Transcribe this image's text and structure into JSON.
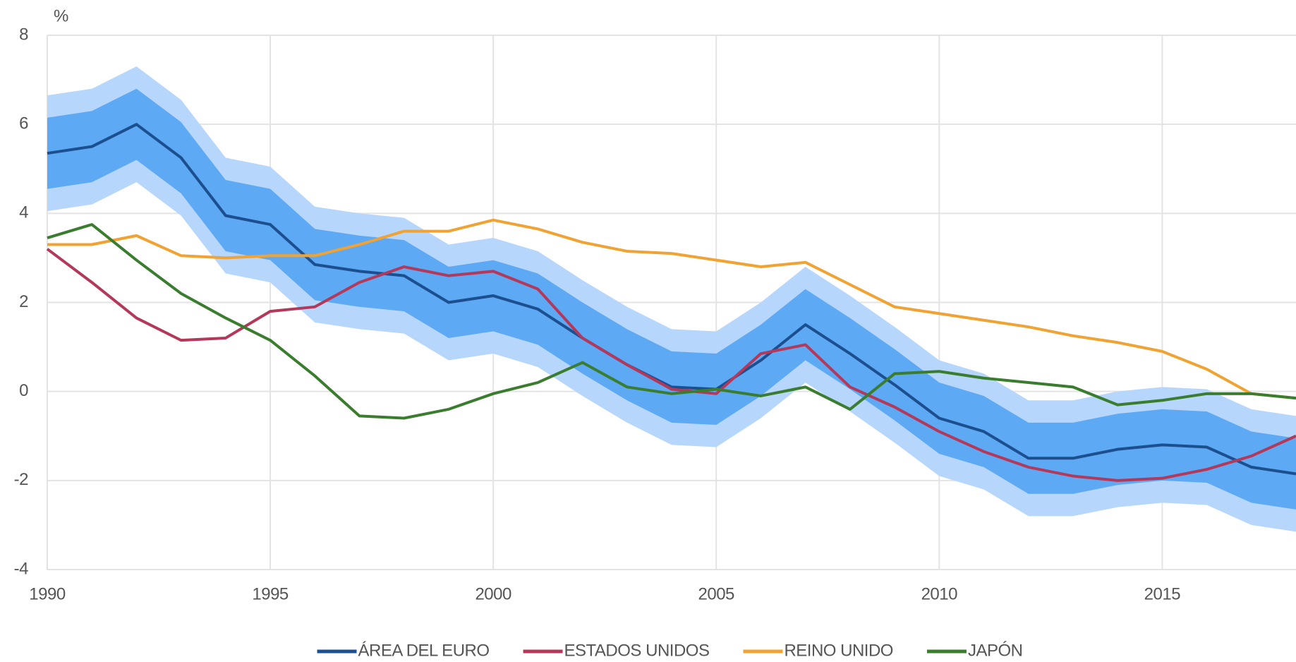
{
  "chart_data": {
    "type": "line",
    "ylabel": "%",
    "x": [
      1990,
      1991,
      1992,
      1993,
      1994,
      1995,
      1996,
      1997,
      1998,
      1999,
      2000,
      2001,
      2002,
      2003,
      2004,
      2005,
      2006,
      2007,
      2008,
      2009,
      2010,
      2011,
      2012,
      2013,
      2014,
      2015,
      2016,
      2017,
      2018
    ],
    "xlim": [
      1990,
      2018
    ],
    "xticks": [
      1990,
      1995,
      2000,
      2005,
      2010,
      2015
    ],
    "ylim": [
      -4,
      8
    ],
    "yticks": [
      8,
      6,
      4,
      2,
      0,
      -2,
      -4
    ],
    "grid": true,
    "legend": "bottom",
    "bands": [
      {
        "color": "#b7d6fb",
        "lower": [
          4.05,
          4.2,
          4.7,
          3.95,
          2.65,
          2.45,
          1.55,
          1.4,
          1.3,
          0.7,
          0.85,
          0.55,
          -0.1,
          -0.7,
          -1.2,
          -1.25,
          -0.6,
          0.2,
          -0.45,
          -1.15,
          -1.9,
          -2.2,
          -2.8,
          -2.8,
          -2.6,
          -2.5,
          -2.55,
          -3.0,
          -3.15
        ],
        "upper": [
          6.65,
          6.8,
          7.3,
          6.55,
          5.25,
          5.05,
          4.15,
          4.0,
          3.9,
          3.3,
          3.45,
          3.15,
          2.5,
          1.9,
          1.4,
          1.35,
          2.0,
          2.8,
          2.15,
          1.45,
          0.7,
          0.4,
          -0.2,
          -0.2,
          0.0,
          0.1,
          0.05,
          -0.4,
          -0.55
        ]
      },
      {
        "color": "#5ea9f3",
        "lower": [
          4.55,
          4.7,
          5.2,
          4.45,
          3.15,
          2.95,
          2.05,
          1.9,
          1.8,
          1.2,
          1.35,
          1.05,
          0.4,
          -0.2,
          -0.7,
          -0.75,
          -0.1,
          0.7,
          0.05,
          -0.65,
          -1.4,
          -1.7,
          -2.3,
          -2.3,
          -2.1,
          -2.0,
          -2.05,
          -2.5,
          -2.65
        ],
        "upper": [
          6.15,
          6.3,
          6.8,
          6.05,
          4.75,
          4.55,
          3.65,
          3.5,
          3.4,
          2.8,
          2.95,
          2.65,
          2.0,
          1.4,
          0.9,
          0.85,
          1.5,
          2.3,
          1.65,
          0.95,
          0.2,
          -0.1,
          -0.7,
          -0.7,
          -0.5,
          -0.4,
          -0.45,
          -0.9,
          -1.05
        ]
      }
    ],
    "series": [
      {
        "name": "ÁREA DEL EURO",
        "color": "#1c4f8f",
        "values": [
          5.35,
          5.5,
          6.0,
          5.25,
          3.95,
          3.75,
          2.85,
          2.7,
          2.6,
          2.0,
          2.15,
          1.85,
          1.2,
          0.6,
          0.1,
          0.05,
          0.7,
          1.5,
          0.85,
          0.15,
          -0.6,
          -0.9,
          -1.5,
          -1.5,
          -1.3,
          -1.2,
          -1.25,
          -1.7,
          -1.85
        ]
      },
      {
        "name": "ESTADOS UNIDOS",
        "color": "#b3385a",
        "values": [
          3.2,
          2.45,
          1.65,
          1.15,
          1.2,
          1.8,
          1.9,
          2.45,
          2.8,
          2.6,
          2.7,
          2.3,
          1.2,
          0.6,
          0.05,
          -0.05,
          0.85,
          1.05,
          0.1,
          -0.35,
          -0.9,
          -1.35,
          -1.7,
          -1.9,
          -2.0,
          -1.95,
          -1.75,
          -1.45,
          -1.0
        ]
      },
      {
        "name": "REINO UNIDO",
        "color": "#f0a232",
        "values": [
          3.3,
          3.3,
          3.5,
          3.05,
          3.0,
          3.05,
          3.05,
          3.3,
          3.6,
          3.6,
          3.85,
          3.65,
          3.35,
          3.15,
          3.1,
          2.95,
          2.8,
          2.9,
          2.4,
          1.9,
          1.75,
          1.6,
          1.45,
          1.25,
          1.1,
          0.9,
          0.5,
          -0.05,
          -0.15
        ]
      },
      {
        "name": "JAPÓN",
        "color": "#3b7d2f",
        "values": [
          3.45,
          3.75,
          2.95,
          2.2,
          1.65,
          1.15,
          0.35,
          -0.55,
          -0.6,
          -0.4,
          -0.05,
          0.2,
          0.65,
          0.1,
          -0.05,
          0.05,
          -0.1,
          0.1,
          -0.4,
          0.4,
          0.45,
          0.3,
          0.2,
          0.1,
          -0.3,
          -0.2,
          -0.05,
          -0.05,
          -0.15
        ]
      }
    ]
  }
}
